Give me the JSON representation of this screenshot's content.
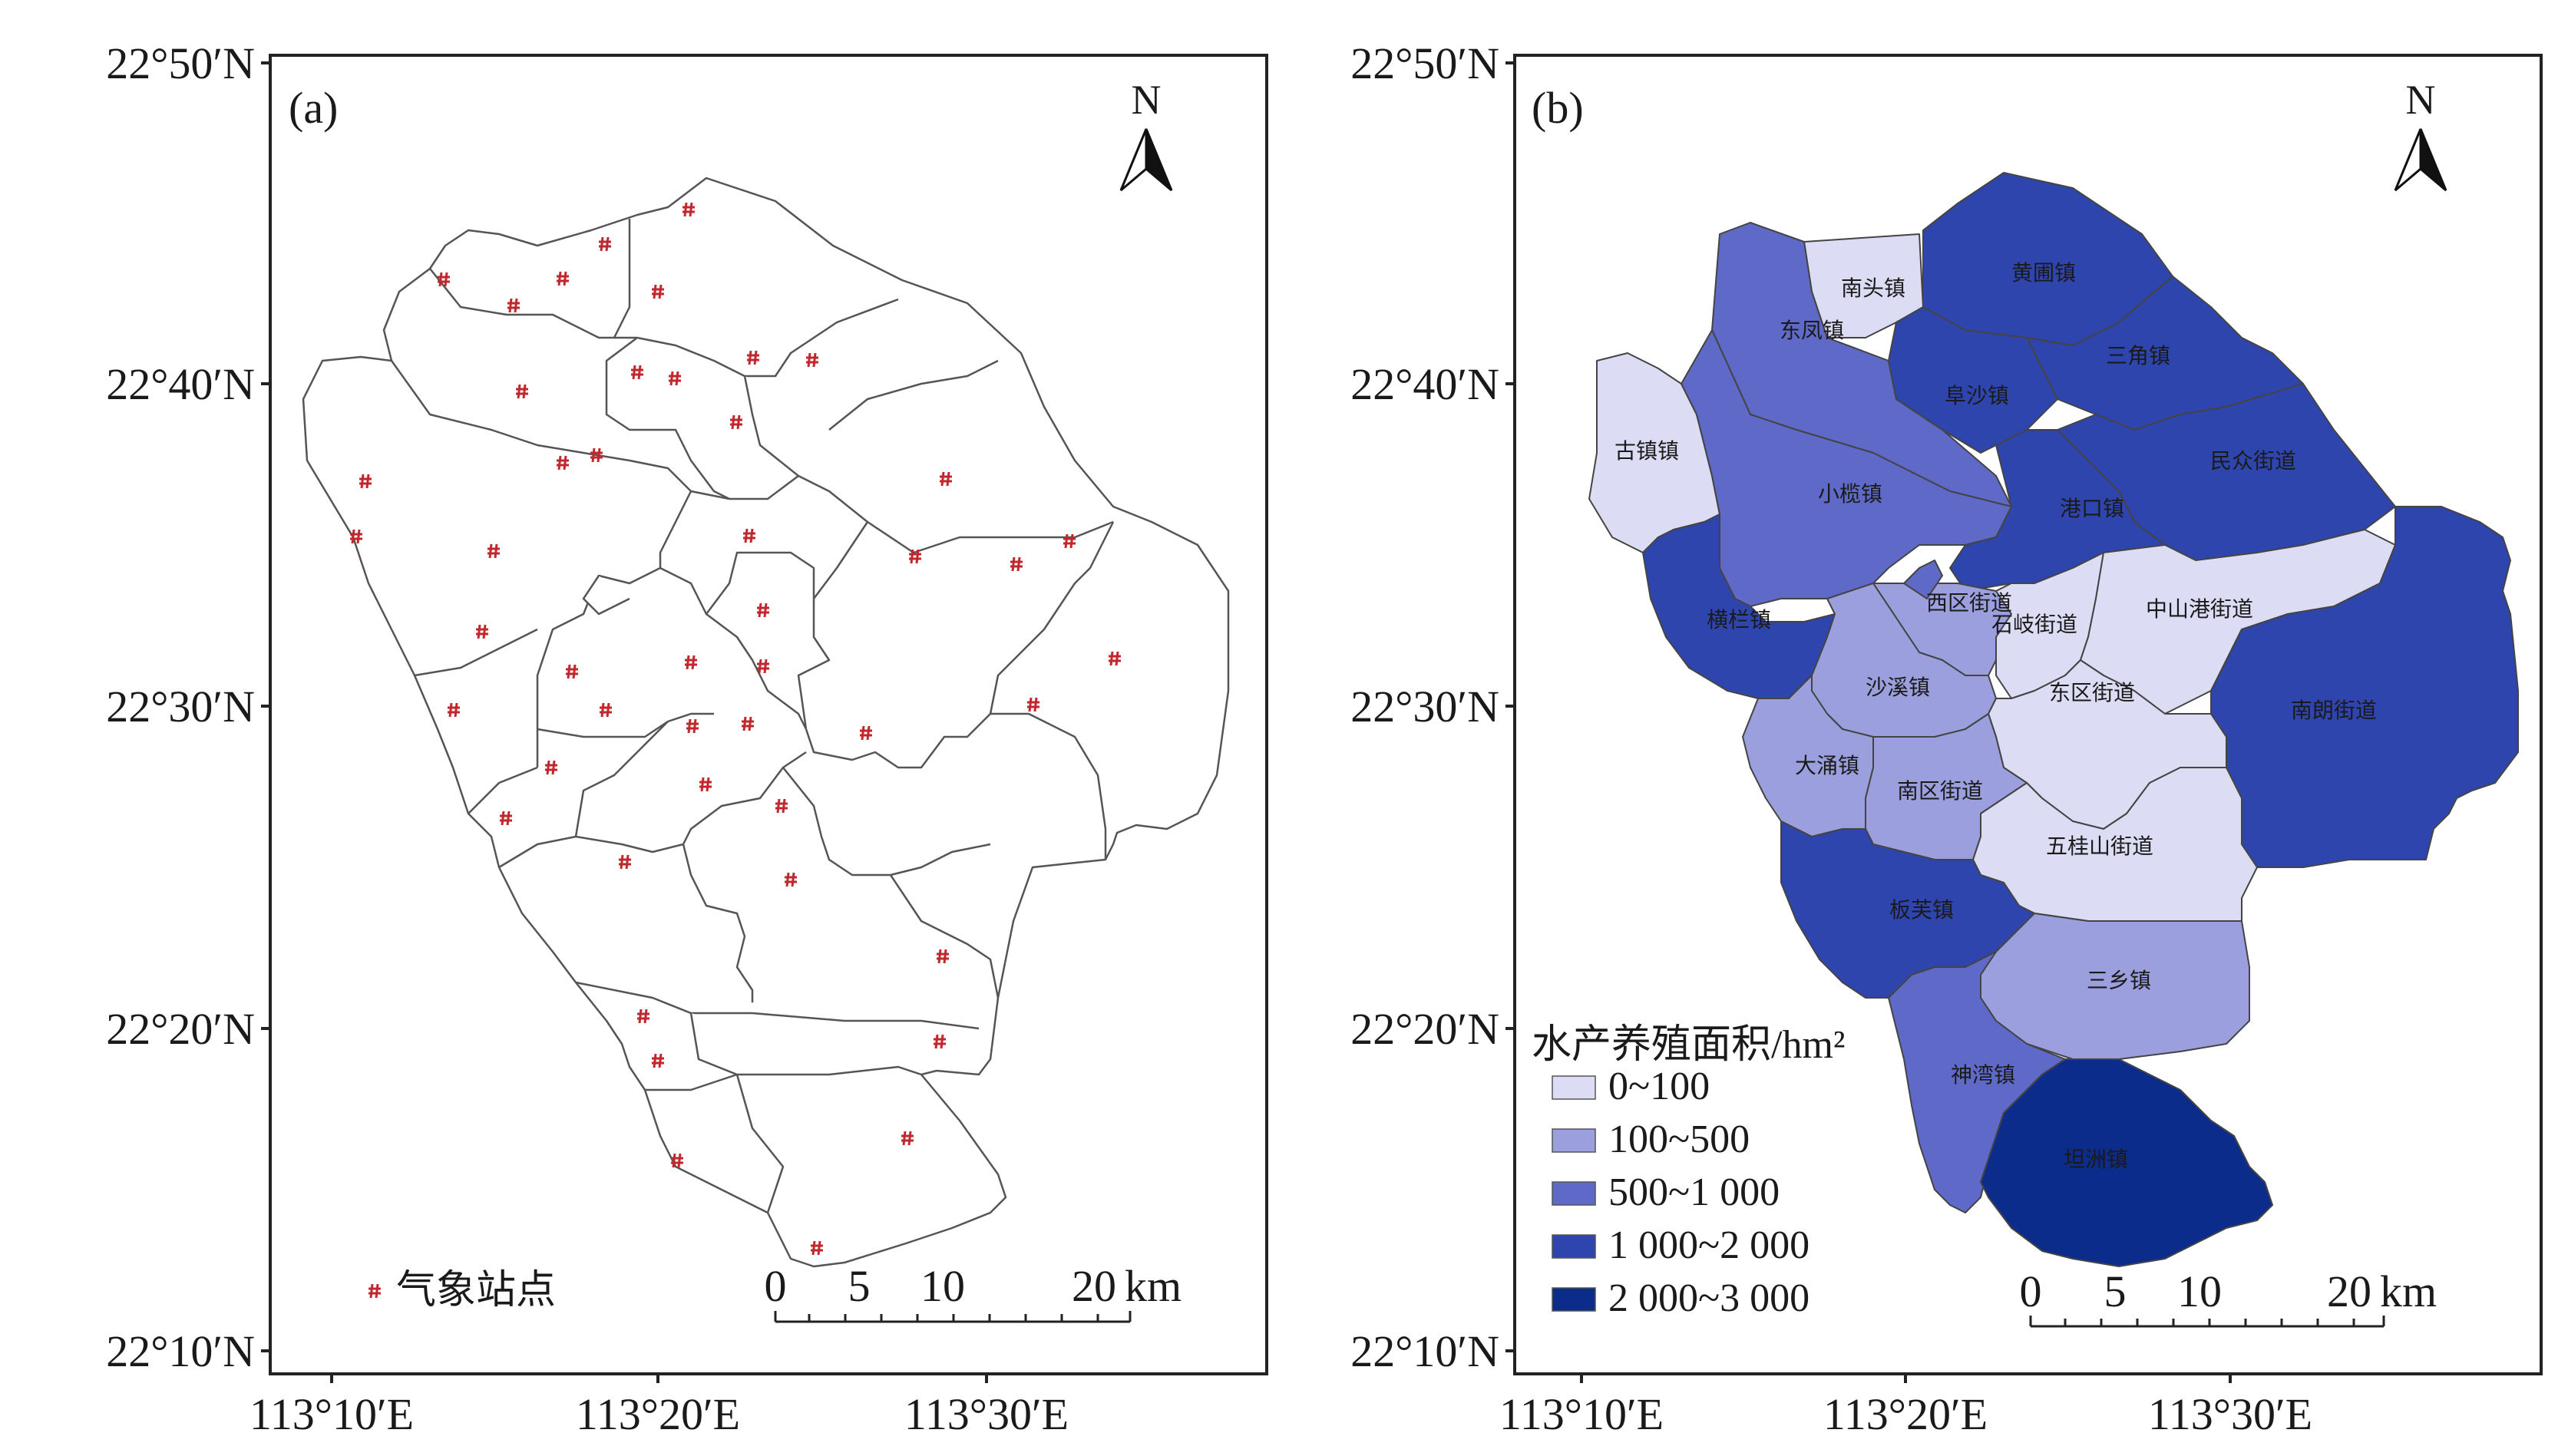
{
  "panels": [
    {
      "tag": "(a)",
      "north_label": "N",
      "y_ticks": [
        "22°50′N",
        "22°40′N",
        "22°30′N",
        "22°20′N",
        "22°10′N"
      ],
      "x_ticks": [
        "113°10′E",
        "113°20′E",
        "113°30′E"
      ],
      "legend_label": "气象站点",
      "scale": {
        "labels": [
          "0",
          "5",
          "10",
          "20"
        ],
        "unit": "km"
      }
    },
    {
      "tag": "(b)",
      "north_label": "N",
      "y_ticks": [
        "22°50′N",
        "22°40′N",
        "22°30′N",
        "22°20′N",
        "22°10′N"
      ],
      "x_ticks": [
        "113°10′E",
        "113°20′E",
        "113°30′E"
      ],
      "legend_title": "水产养殖面积/hm²",
      "legend_items": [
        {
          "label": "0~100",
          "color": "#dcdcf4"
        },
        {
          "label": "100~500",
          "color": "#9b9fde"
        },
        {
          "label": "500~1 000",
          "color": "#5f69c8"
        },
        {
          "label": "1 000~2 000",
          "color": "#2f45ae"
        },
        {
          "label": "2 000~3 000",
          "color": "#0b2c8a"
        }
      ],
      "scale": {
        "labels": [
          "0",
          "5",
          "10",
          "20"
        ],
        "unit": "km"
      },
      "towns": [
        {
          "name": "南头镇",
          "class": 0
        },
        {
          "name": "黄圃镇",
          "class": 3
        },
        {
          "name": "东凤镇",
          "class": 2
        },
        {
          "name": "三角镇",
          "class": 3
        },
        {
          "name": "阜沙镇",
          "class": 3
        },
        {
          "name": "古镇镇",
          "class": 0
        },
        {
          "name": "民众街道",
          "class": 3
        },
        {
          "name": "小榄镇",
          "class": 2
        },
        {
          "name": "港口镇",
          "class": 3
        },
        {
          "name": "横栏镇",
          "class": 3
        },
        {
          "name": "西区街道",
          "class": 1
        },
        {
          "name": "石岐街道",
          "class": 0
        },
        {
          "name": "中山港街道",
          "class": 0
        },
        {
          "name": "沙溪镇",
          "class": 1
        },
        {
          "name": "东区街道",
          "class": 0
        },
        {
          "name": "南朗街道",
          "class": 3
        },
        {
          "name": "大涌镇",
          "class": 1
        },
        {
          "name": "南区街道",
          "class": 1
        },
        {
          "name": "五桂山街道",
          "class": 0
        },
        {
          "name": "板芙镇",
          "class": 3
        },
        {
          "name": "三乡镇",
          "class": 1
        },
        {
          "name": "神湾镇",
          "class": 2
        },
        {
          "name": "坦洲镇",
          "class": 4
        }
      ]
    }
  ]
}
